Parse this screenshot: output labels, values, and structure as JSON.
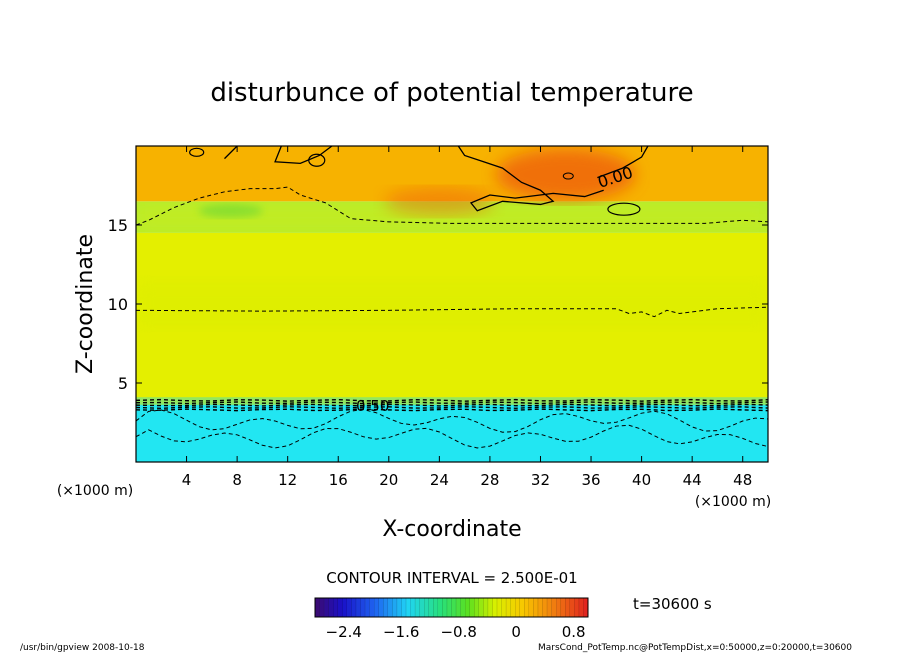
{
  "chart_data": {
    "type": "heatmap",
    "title": "disturbunce of potential temperature",
    "xlabel": "X-coordinate",
    "ylabel": "Z-coordinate",
    "x_unit": "(×1000 m)",
    "x_unit_right": "(×1000 m)",
    "xlim": [
      0,
      50
    ],
    "ylim": [
      0,
      20
    ],
    "x_ticks": [
      4,
      8,
      12,
      16,
      20,
      24,
      28,
      32,
      36,
      40,
      44,
      48
    ],
    "y_ticks": [
      5,
      10,
      15
    ],
    "contour_interval_text": "CONTOUR INTERVAL = 2.500E-01",
    "time_text": "t=30600 s",
    "contour_labels": [
      "0.00",
      "0.50"
    ],
    "colorbar": {
      "range": [
        -2.8,
        1.0
      ],
      "ticks": [
        -2.4,
        -1.6,
        -0.8,
        0,
        0.8
      ],
      "tick_labels": [
        "−2.4",
        "−1.6",
        "−0.8",
        "0",
        "0.8"
      ]
    },
    "layers": [
      {
        "z_min": 0,
        "z_max": 3.7,
        "value": -1.35
      },
      {
        "z_min": 3.7,
        "z_max": 14.5,
        "value": 0.2
      },
      {
        "z_min": 14.5,
        "z_max": 16.5,
        "value": 0.12
      },
      {
        "z_min": 16.5,
        "z_max": 20,
        "value": 0.45
      }
    ],
    "warm_maxima": [
      {
        "x": 34,
        "z": 18.2,
        "value": 0.75
      },
      {
        "x": 24,
        "z": 16.5,
        "value": 0.6
      }
    ]
  },
  "footer": {
    "left": "/usr/bin/gpview   2008-10-18",
    "right": "MarsCond_PotTemp.nc@PotTempDist,x=0:50000,z=0:20000,t=30600"
  },
  "colors": {
    "cold": "#22e6f2",
    "mid": "#e4ef00",
    "band": "#b8ec2a",
    "warm": "#f7b200",
    "hot": "#ee5a0a"
  }
}
